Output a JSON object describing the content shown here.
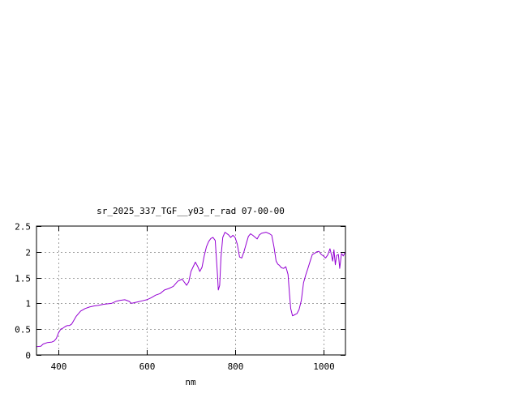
{
  "chart_data": {
    "type": "line",
    "title": "sr_2025_337_TGF__y03_r_rad 07-00-00",
    "xlabel": "nm",
    "ylabel": "",
    "xlim": [
      350,
      1050
    ],
    "ylim": [
      0,
      2.5
    ],
    "xticks": [
      400,
      600,
      800,
      1000
    ],
    "xtick_labels": [
      "400",
      "600",
      "800",
      "1000"
    ],
    "yticks": [
      0,
      0.5,
      1,
      1.5,
      2,
      2.5
    ],
    "ytick_labels": [
      "0",
      "0.5",
      "1",
      "1.5",
      "2",
      "2.5"
    ],
    "grid": true,
    "legend": "none",
    "series": [
      {
        "color": "#9400d3",
        "x": [
          350,
          360,
          365,
          375,
          385,
          390,
          395,
          400,
          405,
          410,
          415,
          420,
          425,
          430,
          440,
          450,
          460,
          470,
          480,
          490,
          500,
          510,
          520,
          530,
          540,
          550,
          560,
          565,
          570,
          580,
          590,
          600,
          610,
          620,
          630,
          640,
          650,
          660,
          670,
          680,
          690,
          695,
          700,
          710,
          715,
          720,
          725,
          730,
          735,
          740,
          745,
          750,
          755,
          760,
          762,
          765,
          768,
          772,
          777,
          785,
          790,
          795,
          800,
          805,
          810,
          815,
          820,
          825,
          830,
          835,
          840,
          850,
          855,
          860,
          870,
          878,
          883,
          888,
          893,
          897,
          900,
          905,
          910,
          915,
          920,
          923,
          926,
          930,
          933,
          937,
          940,
          945,
          950,
          955,
          960,
          965,
          970,
          975,
          980,
          985,
          990,
          995,
          1000,
          1005,
          1010,
          1015,
          1018,
          1021,
          1024,
          1027,
          1030,
          1034,
          1037,
          1041,
          1045,
          1050
        ],
        "y": [
          0.16,
          0.17,
          0.21,
          0.24,
          0.25,
          0.27,
          0.32,
          0.43,
          0.5,
          0.52,
          0.55,
          0.57,
          0.57,
          0.6,
          0.75,
          0.85,
          0.9,
          0.93,
          0.95,
          0.96,
          0.98,
          0.99,
          1.0,
          1.04,
          1.06,
          1.07,
          1.04,
          1.0,
          1.01,
          1.03,
          1.05,
          1.07,
          1.11,
          1.16,
          1.19,
          1.26,
          1.29,
          1.33,
          1.43,
          1.47,
          1.35,
          1.42,
          1.62,
          1.8,
          1.72,
          1.62,
          1.7,
          1.92,
          2.1,
          2.2,
          2.26,
          2.28,
          2.22,
          1.55,
          1.26,
          1.35,
          1.9,
          2.28,
          2.38,
          2.33,
          2.28,
          2.32,
          2.28,
          2.15,
          1.9,
          1.88,
          2.0,
          2.15,
          2.3,
          2.35,
          2.32,
          2.25,
          2.33,
          2.36,
          2.38,
          2.35,
          2.32,
          2.1,
          1.82,
          1.76,
          1.74,
          1.69,
          1.68,
          1.71,
          1.56,
          1.2,
          0.9,
          0.76,
          0.77,
          0.79,
          0.8,
          0.88,
          1.06,
          1.4,
          1.55,
          1.68,
          1.82,
          1.95,
          1.97,
          2.0,
          2.01,
          1.95,
          1.92,
          1.88,
          1.94,
          2.06,
          1.95,
          1.82,
          2.04,
          1.75,
          1.93,
          1.95,
          1.68,
          1.97,
          1.92,
          2.0
        ]
      }
    ]
  }
}
